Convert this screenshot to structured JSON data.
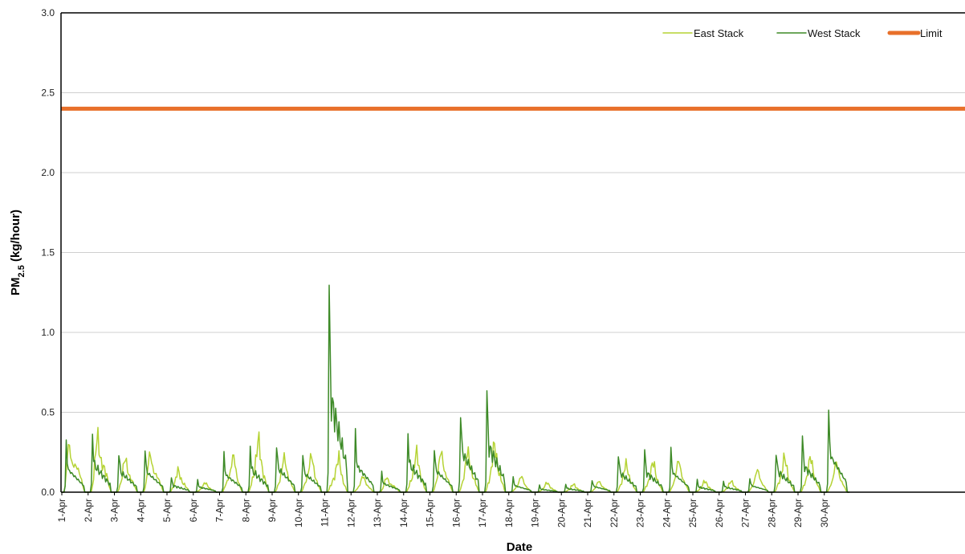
{
  "chart_data": {
    "type": "line",
    "title": "",
    "xlabel": "Date",
    "ylabel": {
      "main": "PM",
      "sub": "2.5",
      "unit": " (kg/hour)"
    },
    "ylim": [
      0,
      3.0
    ],
    "yticks": [
      "0.0",
      "0.5",
      "1.0",
      "1.5",
      "2.0",
      "2.5",
      "3.0"
    ],
    "grid": true,
    "legend": "top-right",
    "categories": [
      "1-Apr",
      "2-Apr",
      "3-Apr",
      "4-Apr",
      "5-Apr",
      "6-Apr",
      "7-Apr",
      "8-Apr",
      "9-Apr",
      "10-Apr",
      "11-Apr",
      "12-Apr",
      "13-Apr",
      "14-Apr",
      "15-Apr",
      "16-Apr",
      "17-Apr",
      "18-Apr",
      "19-Apr",
      "20-Apr",
      "21-Apr",
      "22-Apr",
      "23-Apr",
      "24-Apr",
      "25-Apr",
      "26-Apr",
      "27-Apr",
      "28-Apr",
      "29-Apr",
      "30-Apr"
    ],
    "series": [
      {
        "name": "East Stack",
        "color": "#b5d334",
        "daily_peak": [
          0.37,
          0.38,
          0.22,
          0.26,
          0.14,
          0.06,
          0.23,
          0.33,
          0.22,
          0.23,
          0.22,
          0.1,
          0.1,
          0.25,
          0.26,
          0.26,
          0.3,
          0.1,
          0.06,
          0.05,
          0.07,
          0.18,
          0.19,
          0.2,
          0.07,
          0.07,
          0.14,
          0.22,
          0.22,
          0.19
        ],
        "peak_lag": [
          0.18,
          0.3,
          0.38,
          0.3,
          0.4,
          0.45,
          0.55,
          0.48,
          0.45,
          0.5,
          0.55,
          0.45,
          0.3,
          0.5,
          0.4,
          0.42,
          0.45,
          0.48,
          0.45,
          0.45,
          0.4,
          0.45,
          0.5,
          0.45,
          0.45,
          0.45,
          0.45,
          0.5,
          0.48,
          0.45
        ]
      },
      {
        "name": "West Stack",
        "color": "#3d8a27",
        "daily_peak": [
          0.32,
          0.38,
          0.28,
          0.28,
          0.09,
          0.07,
          0.24,
          0.3,
          0.33,
          0.26,
          1.3,
          0.36,
          0.12,
          0.38,
          0.3,
          0.55,
          0.64,
          0.09,
          0.04,
          0.05,
          0.08,
          0.27,
          0.27,
          0.27,
          0.07,
          0.07,
          0.09,
          0.29,
          0.36,
          0.51
        ]
      },
      {
        "name": "Limit",
        "color": "#e8702a",
        "value": 2.4
      }
    ]
  }
}
